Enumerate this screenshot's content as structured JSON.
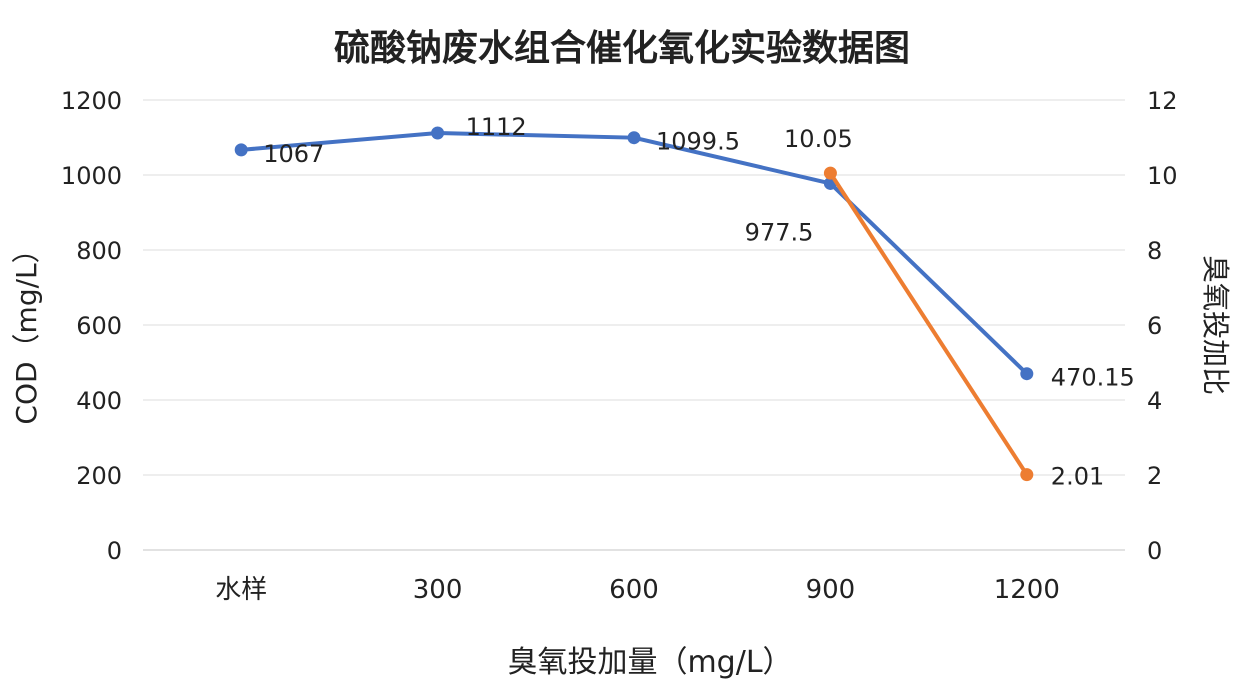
{
  "chart_data": {
    "type": "line",
    "title": "硫酸钠废水组合催化氧化实验数据图",
    "xlabel": "臭氧投加量（mg/L）",
    "ylabel": "COD（mg/L）",
    "y2label": "臭氧投加比",
    "categories": [
      "水样",
      "300",
      "600",
      "900",
      "1200"
    ],
    "ylim": [
      0,
      1200
    ],
    "yticks": [
      "0",
      "200",
      "400",
      "600",
      "800",
      "1000",
      "1200"
    ],
    "y2lim": [
      0,
      12
    ],
    "y2ticks": [
      "0",
      "2",
      "4",
      "6",
      "8",
      "10",
      "12"
    ],
    "grid": true,
    "series": [
      {
        "axis": "left",
        "color": "#4472C4",
        "values": [
          1067,
          1112,
          1099.5,
          977.5,
          470.15
        ],
        "labels": [
          "1067",
          "1112",
          "1099.5",
          "977.5",
          "470.15"
        ]
      },
      {
        "axis": "right",
        "color": "#ED7D31",
        "values": [
          null,
          null,
          null,
          10.05,
          2.01
        ],
        "labels": [
          "",
          "",
          "",
          "10.05",
          "2.01"
        ]
      }
    ]
  }
}
